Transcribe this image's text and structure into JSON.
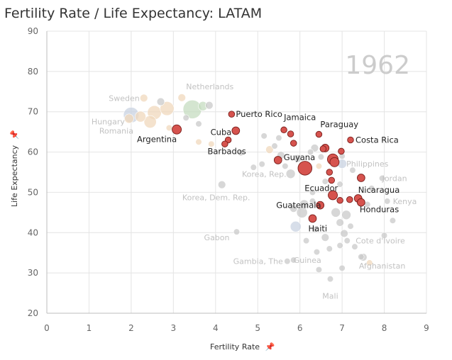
{
  "chart_data": {
    "type": "scatter",
    "title": "Fertility Rate / Life Expectancy: LATAM",
    "year_watermark": "1962",
    "xlabel": "Fertility Rate",
    "ylabel": "Life Expectancy",
    "xlim": [
      0,
      9
    ],
    "ylim": [
      20,
      90
    ],
    "x_ticks": [
      0,
      1,
      2,
      3,
      4,
      5,
      6,
      7,
      8,
      9
    ],
    "y_ticks": [
      20,
      30,
      40,
      50,
      60,
      70,
      80,
      90
    ],
    "grid": true,
    "colors": {
      "highlight_fill": "#d6534e",
      "highlight_stroke": "#7a1f1c",
      "gray": "#c9c9c9",
      "tan": "#f0d8bc",
      "blue": "#c9d3e2",
      "green": "#c6dcc0",
      "grid": "#e4e4e4",
      "watermark": "#cccccc"
    },
    "highlighted": [
      {
        "name": "Puerto Rico",
        "x": 4.38,
        "y": 69.4,
        "size": 3
      },
      {
        "name": "Cuba",
        "x": 4.48,
        "y": 65.3,
        "size": 4
      },
      {
        "name": "Argentina",
        "x": 3.08,
        "y": 65.6,
        "size": 5
      },
      {
        "name": "Barbados",
        "x": 4.3,
        "y": 63.0,
        "size": 3
      },
      {
        "name": "Jamaica",
        "x": 5.62,
        "y": 65.5,
        "size": 3
      },
      {
        "name": "Paraguay",
        "x": 6.45,
        "y": 64.4,
        "size": 3
      },
      {
        "name": "Costa Rica",
        "x": 7.2,
        "y": 63.0,
        "size": 3
      },
      {
        "name": "Guyana",
        "x": 5.48,
        "y": 58.0,
        "size": 4
      },
      {
        "name": "Ecuador",
        "x": 6.75,
        "y": 53.0,
        "size": 3
      },
      {
        "name": "Nicaragua",
        "x": 7.38,
        "y": 48.5,
        "size": 4
      },
      {
        "name": "Guatemala",
        "x": 6.48,
        "y": 46.8,
        "size": 4
      },
      {
        "name": "Honduras",
        "x": 7.45,
        "y": 47.5,
        "size": 4
      },
      {
        "name": "Haiti",
        "x": 6.3,
        "y": 43.5,
        "size": 4
      },
      {
        "name": "",
        "x": 6.12,
        "y": 56.0,
        "size": 8
      },
      {
        "name": "",
        "x": 6.78,
        "y": 58.2,
        "size": 6
      },
      {
        "name": "",
        "x": 6.82,
        "y": 57.5,
        "size": 5
      },
      {
        "name": "",
        "x": 6.6,
        "y": 61.0,
        "size": 4
      },
      {
        "name": "",
        "x": 6.98,
        "y": 60.2,
        "size": 3
      },
      {
        "name": "",
        "x": 6.7,
        "y": 55.0,
        "size": 3
      },
      {
        "name": "",
        "x": 5.78,
        "y": 64.5,
        "size": 3
      },
      {
        "name": "",
        "x": 5.85,
        "y": 62.2,
        "size": 3
      },
      {
        "name": "",
        "x": 4.22,
        "y": 62.0,
        "size": 3
      },
      {
        "name": "",
        "x": 6.78,
        "y": 49.3,
        "size": 5
      },
      {
        "name": "",
        "x": 7.45,
        "y": 53.6,
        "size": 4
      },
      {
        "name": "",
        "x": 6.95,
        "y": 48.0,
        "size": 3
      },
      {
        "name": "",
        "x": 6.55,
        "y": 60.8,
        "size": 3
      },
      {
        "name": "",
        "x": 7.18,
        "y": 48.2,
        "size": 3
      }
    ],
    "background": [
      {
        "name": "Sweden",
        "x": 2.3,
        "y": 73.4,
        "size": 4,
        "color": "tan"
      },
      {
        "name": "Netherlands",
        "x": 3.2,
        "y": 73.5,
        "size": 4,
        "color": "tan"
      },
      {
        "name": "Hungary",
        "x": 1.95,
        "y": 68.3,
        "size": 5,
        "color": "tan"
      },
      {
        "name": "Romania",
        "x": 2.22,
        "y": 68.8,
        "size": 6,
        "color": "tan"
      },
      {
        "name": "Korea, Rep.",
        "x": 5.78,
        "y": 54.6,
        "size": 5,
        "color": "gray"
      },
      {
        "name": "Korea, Dem. Rep.",
        "x": 4.15,
        "y": 51.9,
        "size": 4,
        "color": "gray"
      },
      {
        "name": "Gabon",
        "x": 4.5,
        "y": 40.2,
        "size": 3,
        "color": "gray"
      },
      {
        "name": "Gambia, The",
        "x": 5.7,
        "y": 32.9,
        "size": 3,
        "color": "gray"
      },
      {
        "name": "Guinea",
        "x": 5.85,
        "y": 33.2,
        "size": 3,
        "color": "gray"
      },
      {
        "name": "Mali",
        "x": 6.72,
        "y": 28.5,
        "size": 3,
        "color": "gray"
      },
      {
        "name": "Afghanistan",
        "x": 7.5,
        "y": 33.9,
        "size": 4,
        "color": "gray"
      },
      {
        "name": "Cote d'Ivoire",
        "x": 7.12,
        "y": 38.0,
        "size": 3,
        "color": "gray"
      },
      {
        "name": "Kenya",
        "x": 8.07,
        "y": 47.8,
        "size": 3,
        "color": "gray"
      },
      {
        "name": "Jordan",
        "x": 7.95,
        "y": 53.5,
        "size": 3,
        "color": "gray"
      },
      {
        "name": "Philippines",
        "x": 7.0,
        "y": 57.1,
        "size": 5,
        "color": "blue"
      },
      {
        "name": "",
        "x": 2.0,
        "y": 69.2,
        "size": 9,
        "color": "blue"
      },
      {
        "name": "",
        "x": 2.55,
        "y": 69.8,
        "size": 8,
        "color": "tan"
      },
      {
        "name": "",
        "x": 2.85,
        "y": 70.8,
        "size": 8,
        "color": "tan"
      },
      {
        "name": "",
        "x": 2.45,
        "y": 67.5,
        "size": 7,
        "color": "tan"
      },
      {
        "name": "",
        "x": 3.45,
        "y": 70.6,
        "size": 11,
        "color": "green"
      },
      {
        "name": "",
        "x": 3.7,
        "y": 71.4,
        "size": 5,
        "color": "green"
      },
      {
        "name": "",
        "x": 3.85,
        "y": 71.6,
        "size": 4,
        "color": "gray"
      },
      {
        "name": "",
        "x": 2.7,
        "y": 72.5,
        "size": 4,
        "color": "gray"
      },
      {
        "name": "",
        "x": 3.3,
        "y": 68.5,
        "size": 3,
        "color": "gray"
      },
      {
        "name": "",
        "x": 3.6,
        "y": 67.0,
        "size": 3,
        "color": "gray"
      },
      {
        "name": "",
        "x": 2.9,
        "y": 66.0,
        "size": 3,
        "color": "tan"
      },
      {
        "name": "",
        "x": 3.9,
        "y": 62.0,
        "size": 3,
        "color": "tan"
      },
      {
        "name": "",
        "x": 3.6,
        "y": 62.5,
        "size": 3,
        "color": "tan"
      },
      {
        "name": "",
        "x": 5.28,
        "y": 60.6,
        "size": 4,
        "color": "tan"
      },
      {
        "name": "",
        "x": 5.55,
        "y": 59.2,
        "size": 4,
        "color": "gray"
      },
      {
        "name": "",
        "x": 5.95,
        "y": 58.4,
        "size": 4,
        "color": "gray"
      },
      {
        "name": "",
        "x": 6.35,
        "y": 61.0,
        "size": 4,
        "color": "gray"
      },
      {
        "name": "",
        "x": 6.5,
        "y": 58.8,
        "size": 3,
        "color": "gray"
      },
      {
        "name": "",
        "x": 6.6,
        "y": 52.7,
        "size": 3,
        "color": "gray"
      },
      {
        "name": "",
        "x": 6.95,
        "y": 52.0,
        "size": 3,
        "color": "gray"
      },
      {
        "name": "",
        "x": 6.3,
        "y": 50.0,
        "size": 3,
        "color": "gray"
      },
      {
        "name": "",
        "x": 6.1,
        "y": 47.0,
        "size": 5,
        "color": "gray"
      },
      {
        "name": "",
        "x": 5.85,
        "y": 46.0,
        "size": 4,
        "color": "gray"
      },
      {
        "name": "",
        "x": 6.85,
        "y": 45.0,
        "size": 5,
        "color": "gray"
      },
      {
        "name": "",
        "x": 7.1,
        "y": 44.4,
        "size": 5,
        "color": "gray"
      },
      {
        "name": "",
        "x": 6.95,
        "y": 42.5,
        "size": 4,
        "color": "gray"
      },
      {
        "name": "",
        "x": 7.2,
        "y": 41.6,
        "size": 3,
        "color": "gray"
      },
      {
        "name": "",
        "x": 7.05,
        "y": 39.8,
        "size": 4,
        "color": "gray"
      },
      {
        "name": "",
        "x": 6.6,
        "y": 38.8,
        "size": 4,
        "color": "gray"
      },
      {
        "name": "",
        "x": 6.35,
        "y": 40.8,
        "size": 3,
        "color": "gray"
      },
      {
        "name": "",
        "x": 6.7,
        "y": 36.0,
        "size": 3,
        "color": "gray"
      },
      {
        "name": "",
        "x": 6.4,
        "y": 35.2,
        "size": 3,
        "color": "gray"
      },
      {
        "name": "",
        "x": 7.3,
        "y": 36.5,
        "size": 3,
        "color": "gray"
      },
      {
        "name": "",
        "x": 7.65,
        "y": 32.5,
        "size": 3,
        "color": "tan"
      },
      {
        "name": "",
        "x": 6.45,
        "y": 30.8,
        "size": 3,
        "color": "gray"
      },
      {
        "name": "",
        "x": 7.0,
        "y": 31.2,
        "size": 3,
        "color": "gray"
      },
      {
        "name": "",
        "x": 5.9,
        "y": 41.5,
        "size": 6,
        "color": "blue"
      },
      {
        "name": "",
        "x": 6.05,
        "y": 45.0,
        "size": 6,
        "color": "gray"
      },
      {
        "name": "",
        "x": 6.3,
        "y": 47.8,
        "size": 3,
        "color": "gray"
      },
      {
        "name": "",
        "x": 7.6,
        "y": 47.0,
        "size": 3,
        "color": "gray"
      },
      {
        "name": "",
        "x": 7.7,
        "y": 51.0,
        "size": 3,
        "color": "gray"
      },
      {
        "name": "",
        "x": 7.25,
        "y": 55.5,
        "size": 3,
        "color": "gray"
      },
      {
        "name": "",
        "x": 7.0,
        "y": 59.0,
        "size": 3,
        "color": "gray"
      },
      {
        "name": "",
        "x": 6.25,
        "y": 60.0,
        "size": 3,
        "color": "gray"
      },
      {
        "name": "",
        "x": 5.65,
        "y": 56.5,
        "size": 3,
        "color": "gray"
      },
      {
        "name": "",
        "x": 5.5,
        "y": 63.5,
        "size": 3,
        "color": "gray"
      },
      {
        "name": "",
        "x": 5.1,
        "y": 57.0,
        "size": 3,
        "color": "gray"
      },
      {
        "name": "",
        "x": 4.9,
        "y": 56.2,
        "size": 3,
        "color": "gray"
      },
      {
        "name": "",
        "x": 4.6,
        "y": 59.8,
        "size": 3,
        "color": "gray"
      },
      {
        "name": "",
        "x": 6.95,
        "y": 36.8,
        "size": 3,
        "color": "gray"
      },
      {
        "name": "",
        "x": 7.45,
        "y": 34.0,
        "size": 3,
        "color": "gray"
      },
      {
        "name": "",
        "x": 6.15,
        "y": 38.0,
        "size": 3,
        "color": "gray"
      },
      {
        "name": "",
        "x": 8.2,
        "y": 43.0,
        "size": 3,
        "color": "gray"
      },
      {
        "name": "",
        "x": 8.0,
        "y": 39.3,
        "size": 3,
        "color": "gray"
      },
      {
        "name": "",
        "x": 5.15,
        "y": 64.0,
        "size": 3,
        "color": "gray"
      },
      {
        "name": "",
        "x": 5.4,
        "y": 61.5,
        "size": 3,
        "color": "gray"
      },
      {
        "name": "",
        "x": 6.45,
        "y": 56.5,
        "size": 3,
        "color": "tan"
      }
    ]
  },
  "icons": {
    "x_axis_pin": "pin-icon",
    "y_axis_pin": "pin-icon"
  }
}
